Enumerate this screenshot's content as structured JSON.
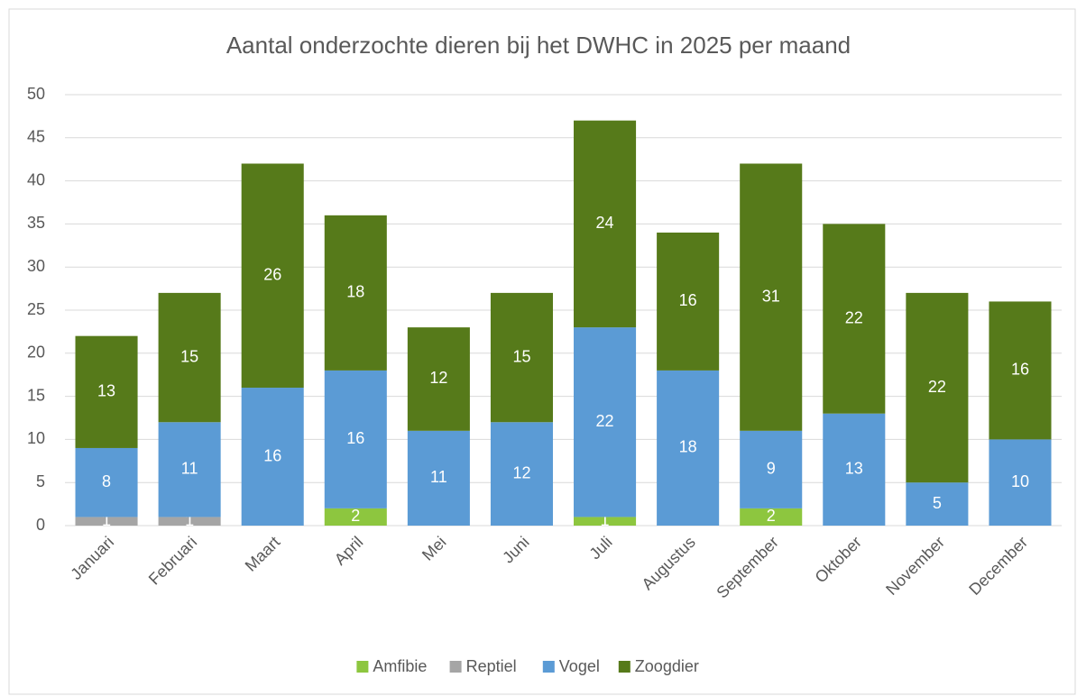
{
  "chart_data": {
    "type": "bar",
    "stacked": true,
    "title": "Aantal onderzochte dieren bij het DWHC in 2025 per maand",
    "categories": [
      "Januari",
      "Februari",
      "Maart",
      "April",
      "Mei",
      "Juni",
      "Juli",
      "Augustus",
      "September",
      "Oktober",
      "November",
      "December"
    ],
    "series": [
      {
        "name": "Amfibie",
        "color": "#8dc63f",
        "values": [
          0,
          0,
          0,
          2,
          0,
          0,
          1,
          0,
          2,
          0,
          0,
          0
        ]
      },
      {
        "name": "Reptiel",
        "color": "#a5a5a5",
        "values": [
          1,
          1,
          0,
          0,
          0,
          0,
          0,
          0,
          0,
          0,
          0,
          0
        ]
      },
      {
        "name": "Vogel",
        "color": "#5b9bd5",
        "values": [
          8,
          11,
          16,
          16,
          11,
          12,
          22,
          18,
          9,
          13,
          5,
          10
        ]
      },
      {
        "name": "Zoogdier",
        "color": "#567a1a",
        "values": [
          13,
          15,
          26,
          18,
          12,
          15,
          24,
          16,
          31,
          22,
          22,
          16
        ]
      }
    ],
    "ylim": [
      0,
      50
    ],
    "yticks": [
      0,
      5,
      10,
      15,
      20,
      25,
      30,
      35,
      40,
      45,
      50
    ],
    "grid": true,
    "legend": "bottom"
  }
}
